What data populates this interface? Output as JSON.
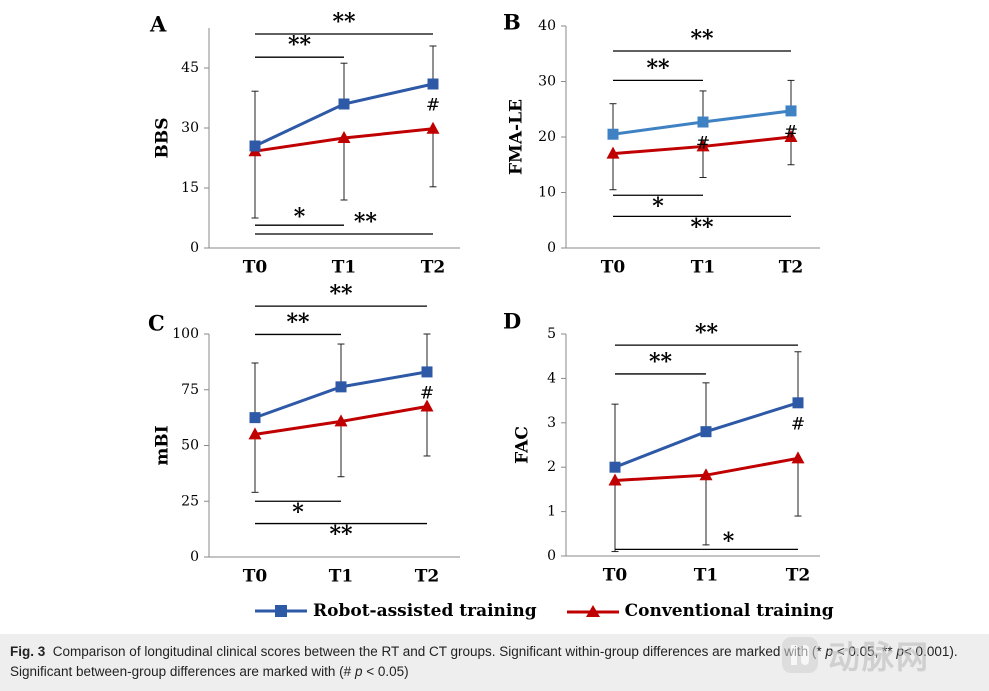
{
  "figure": {
    "legend": [
      {
        "label": "Robot-assisted training",
        "color": "#2e59a7",
        "marker": "square"
      },
      {
        "label": "Conventional training",
        "color": "#c00000",
        "marker": "triangle"
      }
    ],
    "caption": {
      "fig_label": "Fig. 3",
      "text_1": "Comparison of longitudinal clinical scores between the RT and CT groups. Significant within-group differences are marked with (* ",
      "p1": "p",
      "text_2": "< 0.05, **",
      "p2": "p",
      "text_3": "< 0.001). Significant between-group differences are marked with (# ",
      "p3": "p",
      "text_4": "< 0.05)"
    },
    "watermark": "动脉网"
  },
  "chart_data": [
    {
      "panel": "A",
      "type": "line",
      "ylabel": "BBS",
      "categories": [
        "T0",
        "T1",
        "T2"
      ],
      "ylim": [
        0,
        55
      ],
      "yticks": [
        "0",
        "15",
        "30",
        "45"
      ],
      "series": [
        {
          "name": "Robot-assisted training",
          "color": "#2e59a7",
          "values": [
            25.5,
            36,
            41
          ],
          "err_up": [
            39.2,
            46.2,
            50.5
          ],
          "err_low": [
            null,
            null,
            null
          ]
        },
        {
          "name": "Conventional training",
          "color": "#c00000",
          "values": [
            24.2,
            27.5,
            29.8
          ],
          "err_up": [
            null,
            null,
            null
          ],
          "err_low": [
            7.5,
            12,
            15.3
          ]
        }
      ],
      "between_marks": [
        "",
        "",
        "#"
      ],
      "brackets": [
        {
          "from": 0,
          "to": 2,
          "y": 53.5,
          "label": "**",
          "side": "above"
        },
        {
          "from": 0,
          "to": 1,
          "y": 47.7,
          "label": "**",
          "side": "above"
        },
        {
          "from": 0,
          "to": 1,
          "y": 5.7,
          "label": "*",
          "side": "above"
        },
        {
          "from": 0,
          "to": 2,
          "y": 3.5,
          "label": "**",
          "side": "above-right"
        }
      ]
    },
    {
      "panel": "B",
      "type": "line",
      "ylabel": "FMA-LE",
      "categories": [
        "T0",
        "T1",
        "T2"
      ],
      "ylim": [
        0,
        40
      ],
      "yticks": [
        "0",
        "10",
        "20",
        "30",
        "40"
      ],
      "series": [
        {
          "name": "Robot-assisted training",
          "color": "#3f82c4",
          "values": [
            20.5,
            22.7,
            24.7
          ],
          "err_up": [
            26,
            28.3,
            30.2
          ],
          "err_low": [
            null,
            null,
            null
          ]
        },
        {
          "name": "Conventional training",
          "color": "#c00000",
          "values": [
            17,
            18.3,
            20
          ],
          "err_up": [
            null,
            null,
            null
          ],
          "err_low": [
            10.5,
            12.7,
            15
          ]
        }
      ],
      "between_marks": [
        "",
        "#",
        "#"
      ],
      "brackets": [
        {
          "from": 0,
          "to": 2,
          "y": 35.5,
          "label": "**",
          "side": "above"
        },
        {
          "from": 0,
          "to": 1,
          "y": 30.2,
          "label": "**",
          "side": "above"
        },
        {
          "from": 0,
          "to": 1,
          "y": 9.5,
          "label": "*",
          "side": "below"
        },
        {
          "from": 0,
          "to": 2,
          "y": 5.7,
          "label": "**",
          "side": "below"
        }
      ]
    },
    {
      "panel": "C",
      "type": "line",
      "ylabel": "mBI",
      "categories": [
        "T0",
        "T1",
        "T2"
      ],
      "ylim": [
        0,
        100
      ],
      "yticks": [
        "0",
        "25",
        "50",
        "75",
        "100"
      ],
      "series": [
        {
          "name": "Robot-assisted training",
          "color": "#2e59a7",
          "values": [
            62.5,
            76.3,
            83
          ],
          "err_up": [
            87,
            95.5,
            100
          ],
          "err_low": [
            null,
            null,
            null
          ]
        },
        {
          "name": "Conventional training",
          "color": "#c00000",
          "values": [
            55,
            60.8,
            67.5
          ],
          "err_up": [
            null,
            null,
            null
          ],
          "err_low": [
            29,
            36,
            45.3
          ]
        }
      ],
      "between_marks": [
        "",
        "",
        "#"
      ],
      "brackets": [
        {
          "from": 0,
          "to": 2,
          "y": 112.5,
          "label": "**",
          "side": "above"
        },
        {
          "from": 0,
          "to": 1,
          "y": 99.8,
          "label": "**",
          "side": "above"
        },
        {
          "from": 0,
          "to": 1,
          "y": 25,
          "label": "*",
          "side": "below"
        },
        {
          "from": 0,
          "to": 2,
          "y": 15,
          "label": "**",
          "side": "below"
        }
      ]
    },
    {
      "panel": "D",
      "type": "line",
      "ylabel": "FAC",
      "categories": [
        "T0",
        "T1",
        "T2"
      ],
      "ylim": [
        0,
        5
      ],
      "yticks": [
        "0",
        "1",
        "2",
        "3",
        "4",
        "5"
      ],
      "series": [
        {
          "name": "Robot-assisted training",
          "color": "#2e59a7",
          "values": [
            2,
            2.8,
            3.45
          ],
          "err_up": [
            3.42,
            3.9,
            4.6
          ],
          "err_low": [
            null,
            null,
            null
          ]
        },
        {
          "name": "Conventional training",
          "color": "#c00000",
          "values": [
            1.7,
            1.82,
            2.2
          ],
          "err_up": [
            null,
            null,
            null
          ],
          "err_low": [
            0.1,
            0.25,
            0.9
          ]
        }
      ],
      "between_marks": [
        "",
        "",
        "#"
      ],
      "brackets": [
        {
          "from": 0,
          "to": 2,
          "y": 4.75,
          "label": "**",
          "side": "above"
        },
        {
          "from": 0,
          "to": 1,
          "y": 4.1,
          "label": "**",
          "side": "above"
        },
        {
          "from": 0,
          "to": 2,
          "y": 0.15,
          "label": "*",
          "side": "above-right"
        }
      ]
    }
  ]
}
